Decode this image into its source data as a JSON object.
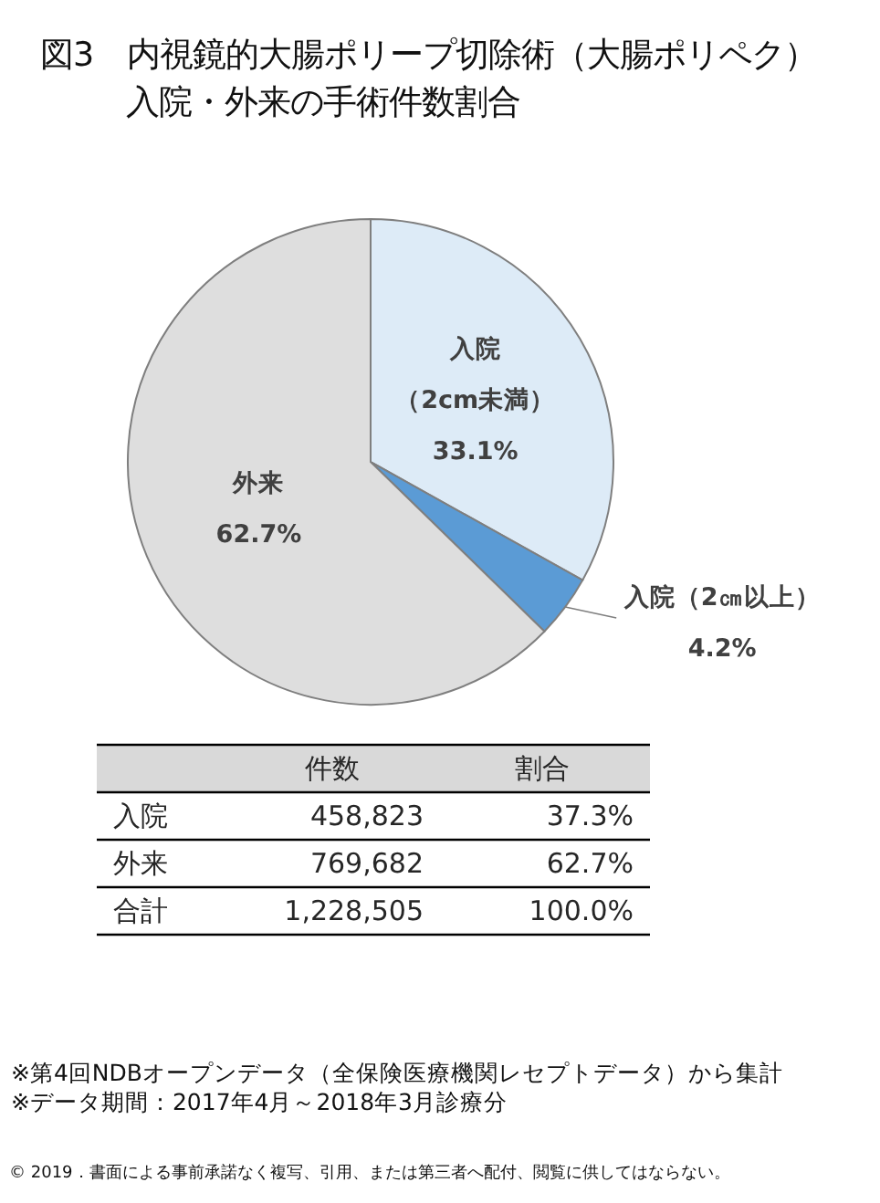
{
  "chart_data": [
    {
      "type": "pie",
      "title": "図3　内視鏡的大腸ポリープ切除術（大腸ポリペク）入院・外来の手術件数割合",
      "categories": [
        "入院（2cm未満）",
        "入院（2㎝以上）",
        "外来"
      ],
      "values": [
        33.1,
        4.2,
        62.7
      ],
      "colors": [
        "#ddebf7",
        "#5b9bd5",
        "#dedede"
      ],
      "value_labels": [
        "33.1%",
        "4.2%",
        "62.7%"
      ]
    },
    {
      "type": "other",
      "categories": [
        "入院",
        "外来",
        "合計"
      ],
      "series": [
        {
          "name": "件数",
          "values": [
            458823,
            769682,
            1228505
          ],
          "value_labels": [
            "458,823",
            "769,682",
            "1,228,505"
          ]
        },
        {
          "name": "割合",
          "values": [
            37.3,
            62.7,
            100.0
          ],
          "value_labels": [
            "37.3%",
            "62.7%",
            "100.0%"
          ]
        }
      ],
      "annotations": [
        "※第4回NDBオープンデータ（全保険医療機関レセプトデータ）から集計",
        "※データ期間：2017年4月～2018年3月診療分",
        "© 2019．書面による事前承諾なく複写、引用、または第三者へ配付、閲覧に供してはならない。"
      ]
    }
  ]
}
